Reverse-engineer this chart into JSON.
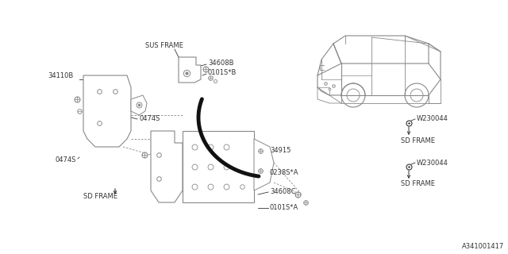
{
  "bg_color": "#ffffff",
  "line_color": "#888888",
  "dark_color": "#333333",
  "diagram_id": "A341001417",
  "labels": {
    "sus_frame": "SUS FRAME",
    "part_34608B": "34608B",
    "part_0101SB": "0101S*B",
    "part_34110B": "34110B",
    "part_0474S_up": "0474S",
    "part_0474S_lo": "0474S",
    "sd_frame_lo_left": "SD FRAME",
    "part_34915": "34915",
    "part_0238SA": "0238S*A",
    "part_34608C": "34608C",
    "part_0101SA": "0101S*A",
    "w230044_up": "W230044",
    "sd_frame_up_right": "SD FRAME",
    "w230044_lo": "W230044",
    "sd_frame_lo_right": "SD FRAME"
  },
  "font_size": 6.0,
  "black_curve_lw": 3.5
}
